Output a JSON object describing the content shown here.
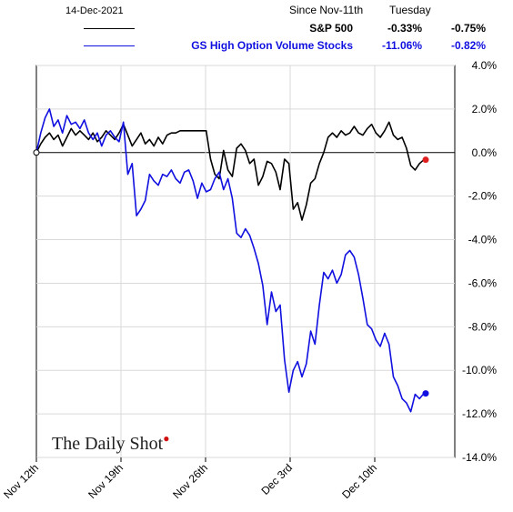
{
  "header": {
    "date": "14-Dec-2021",
    "col1": "Since Nov-11th",
    "col2": "Tuesday"
  },
  "legend": [
    {
      "name": "S&P 500",
      "since": "-0.33%",
      "day": "-0.75%",
      "color": "#000000"
    },
    {
      "name": "GS High Option Volume Stocks",
      "since": "-11.06%",
      "day": "-0.82%",
      "color": "#1010e0"
    }
  ],
  "brand": {
    "text": "The Daily Shot"
  },
  "chart_data": {
    "type": "line",
    "ylim": [
      -14,
      4
    ],
    "y_ticks": [
      "4.0%",
      "2.0%",
      "0.0%",
      "-2.0%",
      "-4.0%",
      "-6.0%",
      "-8.0%",
      "-10.0%",
      "-12.0%",
      "-14.0%"
    ],
    "x_ticks": [
      "Nov 12th",
      "Nov 19th",
      "Nov 26th",
      "Dec 3rd",
      "Dec 10th"
    ],
    "grid": true,
    "series": [
      {
        "name": "S&P 500",
        "color": "#000000",
        "values": [
          0.0,
          0.4,
          0.7,
          0.9,
          0.6,
          0.8,
          0.3,
          0.7,
          1.1,
          0.8,
          1.0,
          0.8,
          0.6,
          0.9,
          0.5,
          0.7,
          1.0,
          0.8,
          0.6,
          0.9,
          1.3,
          0.8,
          0.3,
          0.6,
          0.9,
          0.4,
          0.6,
          0.3,
          0.7,
          0.4,
          0.8,
          0.9,
          0.9,
          1.0,
          1.0,
          1.0,
          1.0,
          1.0,
          1.0,
          1.0,
          -0.3,
          -1.0,
          -1.2,
          0.1,
          -0.8,
          -1.1,
          0.2,
          0.4,
          0.1,
          -0.5,
          -0.3,
          -1.5,
          -1.1,
          -0.4,
          -0.5,
          -0.9,
          -1.7,
          -0.3,
          -0.5,
          -2.6,
          -2.3,
          -3.1,
          -2.4,
          -1.4,
          -1.2,
          -0.5,
          0.0,
          0.7,
          0.9,
          0.7,
          1.0,
          0.8,
          0.9,
          1.2,
          0.9,
          0.8,
          1.1,
          1.3,
          0.9,
          0.7,
          1.0,
          1.4,
          0.8,
          0.6,
          0.7,
          0.2,
          -0.6,
          -0.8,
          -0.5,
          -0.33
        ]
      },
      {
        "name": "GS High Option Volume Stocks",
        "color": "#1010e0",
        "values": [
          0.0,
          0.9,
          1.6,
          2.0,
          1.2,
          1.5,
          0.9,
          1.7,
          1.3,
          1.4,
          1.1,
          1.5,
          0.9,
          0.6,
          0.9,
          0.3,
          0.8,
          1.0,
          0.7,
          0.5,
          1.4,
          -1.0,
          -0.5,
          -2.9,
          -2.6,
          -2.2,
          -1.0,
          -1.3,
          -1.5,
          -1.0,
          -1.1,
          -0.8,
          -1.2,
          -1.4,
          -0.9,
          -0.8,
          -1.3,
          -2.1,
          -1.4,
          -1.8,
          -1.7,
          -1.2,
          -0.9,
          -1.7,
          -1.2,
          -2.1,
          -3.7,
          -3.9,
          -3.5,
          -3.8,
          -4.4,
          -5.1,
          -6.1,
          -7.9,
          -6.4,
          -7.3,
          -7.0,
          -9.5,
          -11.0,
          -10.0,
          -9.6,
          -10.3,
          -9.7,
          -8.2,
          -8.8,
          -7.0,
          -5.5,
          -5.8,
          -5.4,
          -6.0,
          -5.6,
          -4.7,
          -4.5,
          -4.8,
          -5.6,
          -6.7,
          -7.9,
          -8.1,
          -8.6,
          -8.9,
          -8.3,
          -8.8,
          -10.3,
          -10.7,
          -11.3,
          -11.5,
          -11.9,
          -11.1,
          -11.3,
          -11.06
        ]
      }
    ]
  }
}
